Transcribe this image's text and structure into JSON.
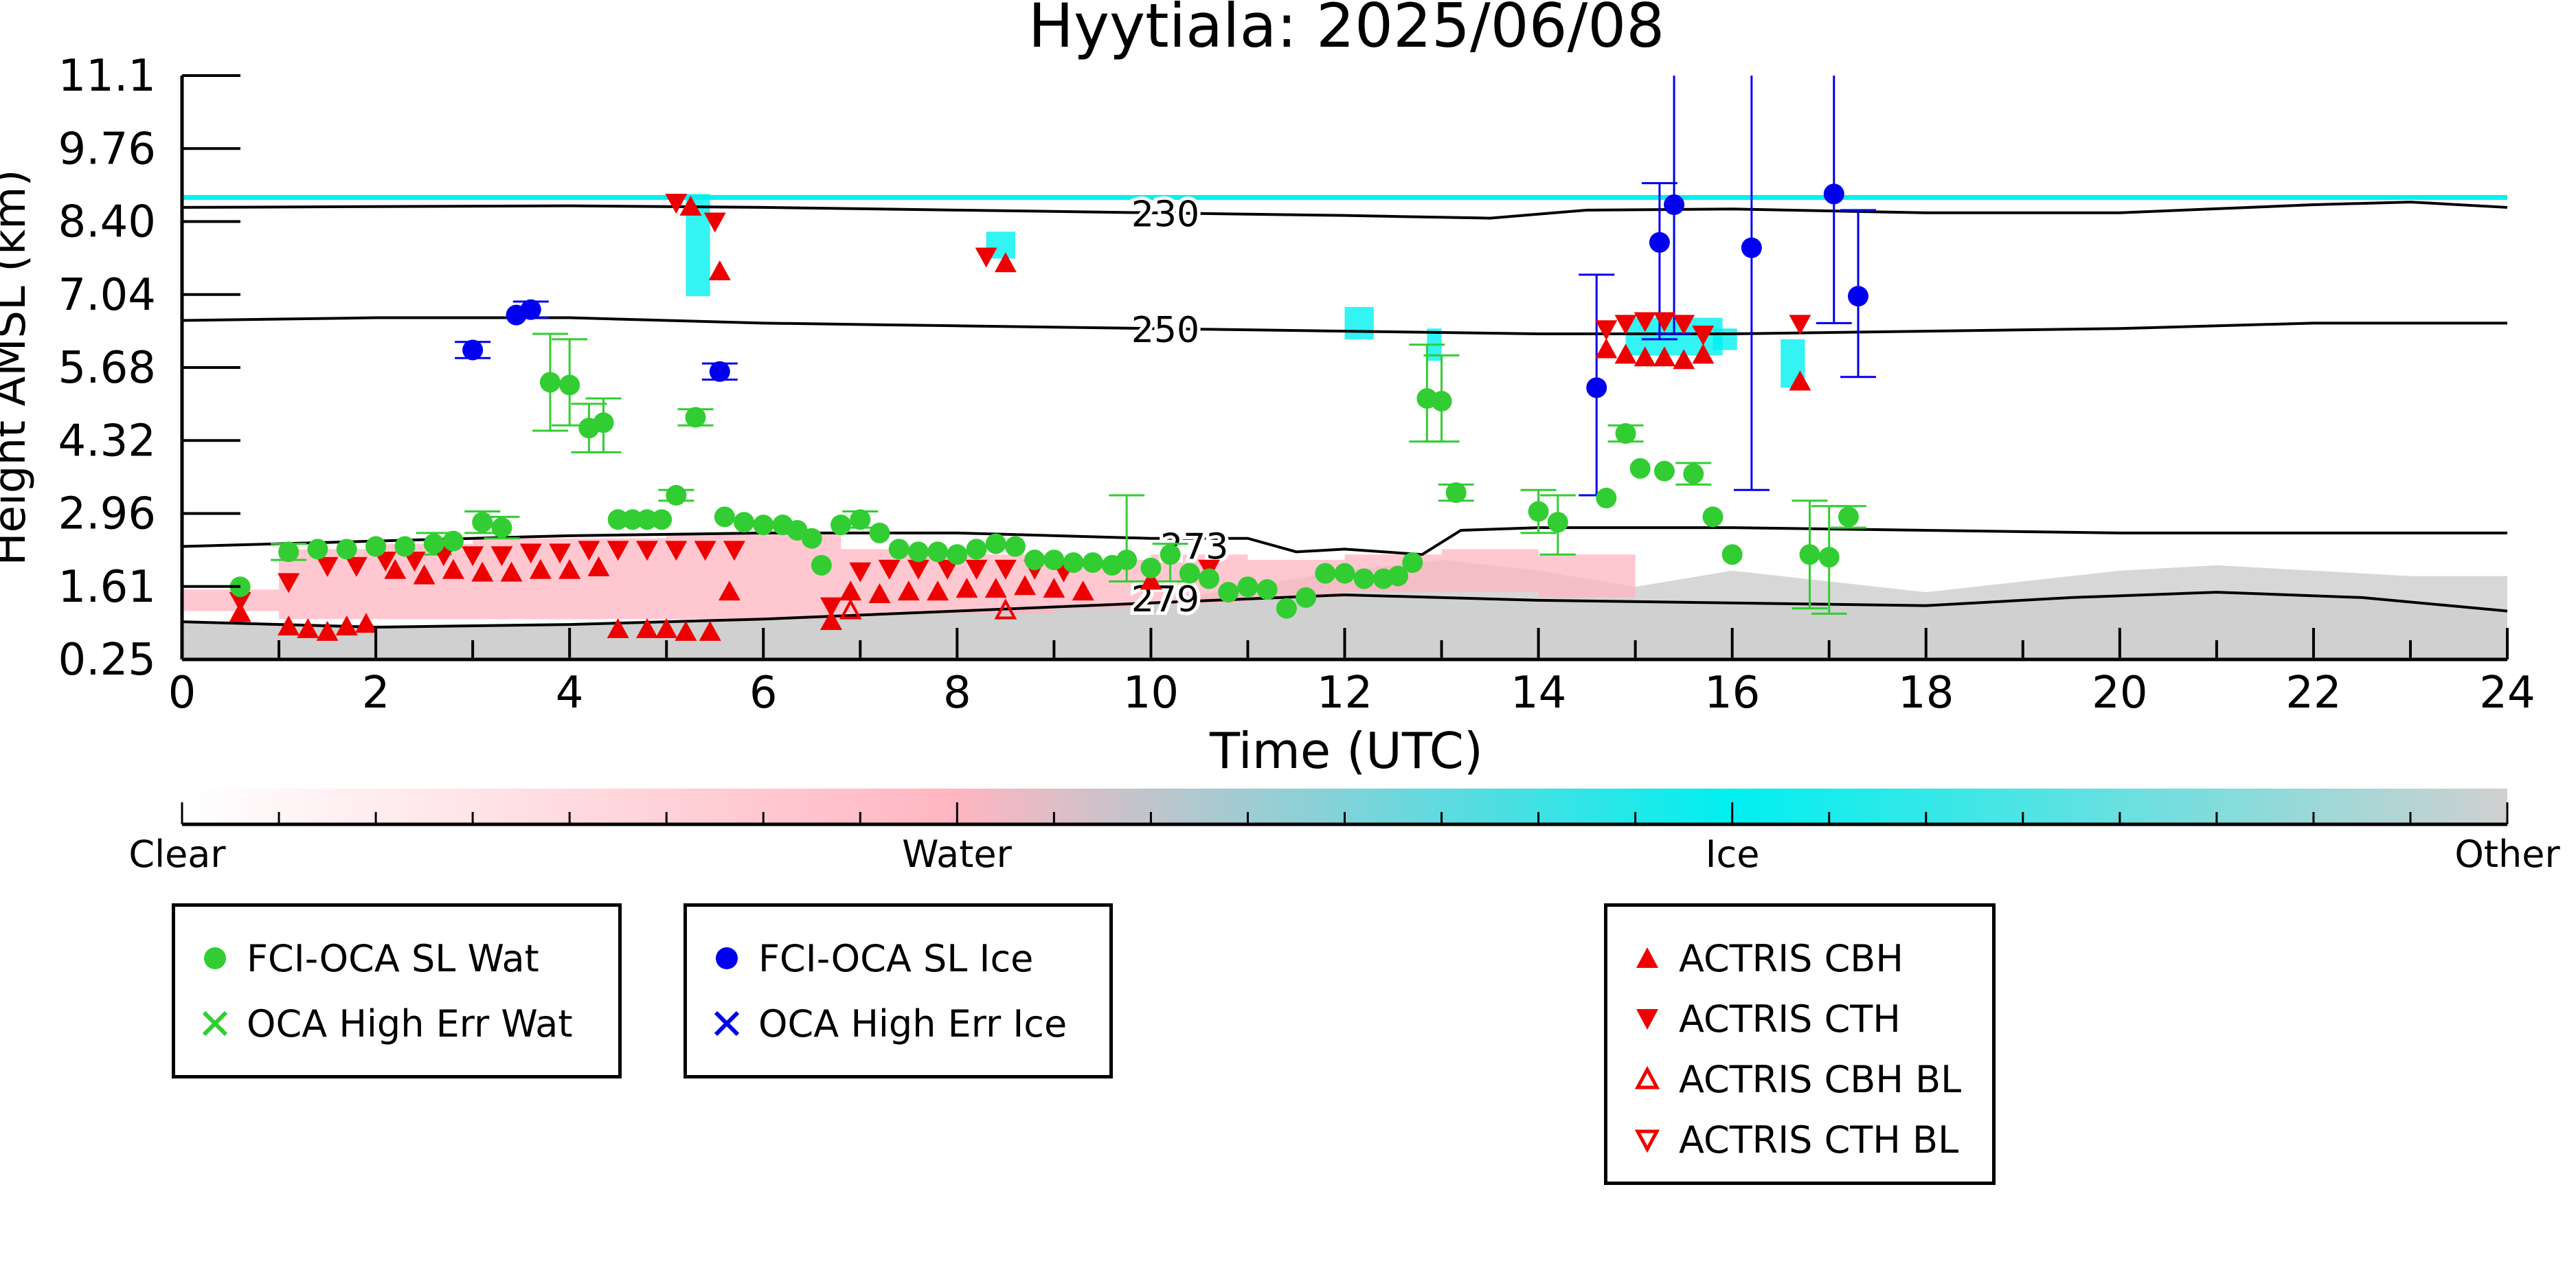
{
  "chart_data": {
    "type": "scatter",
    "title": "Hyytiala: 2025/06/08",
    "xlabel": "Time (UTC)",
    "ylabel": "Height AMSL (km)",
    "xlim": [
      0,
      24
    ],
    "ylim": [
      0.25,
      11.1
    ],
    "x_ticks": [
      "0",
      "2",
      "4",
      "6",
      "8",
      "10",
      "12",
      "14",
      "16",
      "18",
      "20",
      "22",
      "24"
    ],
    "y_ticks": [
      "0.25",
      "1.61",
      "2.96",
      "4.32",
      "5.68",
      "7.04",
      "8.40",
      "9.76",
      "11.1"
    ],
    "colorbar": {
      "labels": [
        "Clear",
        "Water",
        "Ice",
        "Other"
      ],
      "colors": [
        "#ffffff",
        "#ffb6c1",
        "#00f0f0",
        "#d0d0d0"
      ]
    },
    "contours": [
      {
        "label": "230",
        "x": [
          0,
          4,
          6,
          8,
          10,
          12,
          13.5,
          14.5,
          16,
          18,
          20,
          22,
          23,
          24
        ],
        "y": [
          8.65,
          8.68,
          8.65,
          8.6,
          8.55,
          8.5,
          8.45,
          8.6,
          8.62,
          8.55,
          8.55,
          8.7,
          8.75,
          8.65
        ]
      },
      {
        "label": "250",
        "x": [
          0,
          2,
          4,
          6,
          8,
          10,
          12,
          14,
          16,
          18,
          20,
          22,
          24
        ],
        "y": [
          6.55,
          6.6,
          6.6,
          6.5,
          6.45,
          6.4,
          6.35,
          6.3,
          6.3,
          6.35,
          6.4,
          6.5,
          6.5
        ]
      },
      {
        "label": "273",
        "x": [
          0,
          2,
          4,
          6,
          8,
          10,
          11,
          11.5,
          12,
          12.8,
          13.2,
          14,
          16,
          18,
          20,
          22,
          24
        ],
        "y": [
          2.35,
          2.45,
          2.55,
          2.6,
          2.6,
          2.5,
          2.5,
          2.25,
          2.3,
          2.2,
          2.65,
          2.7,
          2.7,
          2.65,
          2.6,
          2.6,
          2.6
        ]
      },
      {
        "label": "279",
        "x": [
          0,
          2,
          4,
          6,
          8,
          10,
          12,
          14,
          16,
          18,
          19.5,
          21,
          22.5,
          24
        ],
        "y": [
          0.95,
          0.85,
          0.9,
          1.0,
          1.15,
          1.3,
          1.45,
          1.35,
          1.3,
          1.25,
          1.4,
          1.5,
          1.4,
          1.15
        ]
      }
    ],
    "series": [
      {
        "name": "FCI-OCA SL Wat",
        "marker": "circle",
        "color": "#32cd32",
        "points": [
          [
            0.6,
            1.6
          ],
          [
            1.1,
            2.25
          ],
          [
            1.4,
            2.3
          ],
          [
            1.7,
            2.3
          ],
          [
            2.0,
            2.35
          ],
          [
            2.3,
            2.35
          ],
          [
            2.6,
            2.4
          ],
          [
            2.8,
            2.45
          ],
          [
            3.1,
            2.8
          ],
          [
            3.3,
            2.7
          ],
          [
            3.8,
            5.4
          ],
          [
            4.0,
            5.35
          ],
          [
            4.2,
            4.55
          ],
          [
            4.35,
            4.65
          ],
          [
            4.5,
            2.85
          ],
          [
            4.65,
            2.85
          ],
          [
            4.8,
            2.85
          ],
          [
            4.95,
            2.85
          ],
          [
            5.1,
            3.3
          ],
          [
            5.3,
            4.75
          ],
          [
            5.6,
            2.9
          ],
          [
            5.8,
            2.8
          ],
          [
            6.0,
            2.75
          ],
          [
            6.2,
            2.75
          ],
          [
            6.35,
            2.65
          ],
          [
            6.5,
            2.5
          ],
          [
            6.6,
            2.0
          ],
          [
            6.8,
            2.75
          ],
          [
            7.0,
            2.85
          ],
          [
            7.2,
            2.6
          ],
          [
            7.4,
            2.3
          ],
          [
            7.6,
            2.25
          ],
          [
            7.8,
            2.25
          ],
          [
            8.0,
            2.2
          ],
          [
            8.2,
            2.3
          ],
          [
            8.4,
            2.4
          ],
          [
            8.6,
            2.35
          ],
          [
            8.8,
            2.1
          ],
          [
            9.0,
            2.1
          ],
          [
            9.2,
            2.05
          ],
          [
            9.4,
            2.05
          ],
          [
            9.6,
            2.0
          ],
          [
            9.75,
            2.1
          ],
          [
            10.0,
            1.95
          ],
          [
            10.2,
            2.2
          ],
          [
            10.4,
            1.85
          ],
          [
            10.6,
            1.75
          ],
          [
            10.8,
            1.5
          ],
          [
            11.0,
            1.6
          ],
          [
            11.2,
            1.55
          ],
          [
            11.4,
            1.2
          ],
          [
            11.6,
            1.4
          ],
          [
            11.8,
            1.85
          ],
          [
            12.0,
            1.85
          ],
          [
            12.2,
            1.75
          ],
          [
            12.4,
            1.75
          ],
          [
            12.55,
            1.8
          ],
          [
            12.7,
            2.05
          ],
          [
            12.85,
            5.1
          ],
          [
            13.0,
            5.05
          ],
          [
            13.15,
            3.35
          ],
          [
            14.0,
            3.0
          ],
          [
            14.2,
            2.8
          ],
          [
            14.7,
            3.25
          ],
          [
            14.9,
            4.45
          ],
          [
            15.05,
            3.8
          ],
          [
            15.3,
            3.75
          ],
          [
            15.6,
            3.7
          ],
          [
            15.8,
            2.9
          ],
          [
            16.0,
            2.2
          ],
          [
            16.8,
            2.2
          ],
          [
            17.0,
            2.15
          ],
          [
            17.2,
            2.9
          ]
        ]
      },
      {
        "name": "FCI-OCA SL Ice",
        "marker": "circle",
        "color": "#0000ee",
        "points": [
          [
            3.0,
            6.0
          ],
          [
            3.45,
            6.65
          ],
          [
            3.6,
            6.75
          ],
          [
            5.55,
            5.6
          ],
          [
            14.6,
            5.3
          ],
          [
            15.25,
            8.0
          ],
          [
            15.4,
            8.7
          ],
          [
            16.2,
            7.9
          ],
          [
            17.05,
            8.9
          ],
          [
            17.3,
            7.0
          ]
        ]
      },
      {
        "name": "OCA High Err Wat",
        "marker": "x",
        "color": "#32cd32",
        "points": []
      },
      {
        "name": "OCA High Err Ice",
        "marker": "x",
        "color": "#0000ee",
        "points": []
      },
      {
        "name": "ACTRIS CBH",
        "marker": "triangle-up",
        "color": "#ee0000",
        "points": [
          [
            0.6,
            1.1
          ],
          [
            1.1,
            0.85
          ],
          [
            1.3,
            0.8
          ],
          [
            1.5,
            0.75
          ],
          [
            1.7,
            0.85
          ],
          [
            1.9,
            0.9
          ],
          [
            2.2,
            1.9
          ],
          [
            2.5,
            1.8
          ],
          [
            2.8,
            1.9
          ],
          [
            3.1,
            1.85
          ],
          [
            3.4,
            1.85
          ],
          [
            3.7,
            1.9
          ],
          [
            4.0,
            1.9
          ],
          [
            4.3,
            1.95
          ],
          [
            4.5,
            0.8
          ],
          [
            4.8,
            0.8
          ],
          [
            5.0,
            0.8
          ],
          [
            5.2,
            0.75
          ],
          [
            5.45,
            0.75
          ],
          [
            5.25,
            8.65
          ],
          [
            5.55,
            7.45
          ],
          [
            5.65,
            1.5
          ],
          [
            6.7,
            0.95
          ],
          [
            6.9,
            1.5
          ],
          [
            7.2,
            1.45
          ],
          [
            7.5,
            1.5
          ],
          [
            7.8,
            1.5
          ],
          [
            8.1,
            1.55
          ],
          [
            8.4,
            1.55
          ],
          [
            8.5,
            7.6
          ],
          [
            8.7,
            1.6
          ],
          [
            9.0,
            1.55
          ],
          [
            9.3,
            1.5
          ],
          [
            10.0,
            1.7
          ],
          [
            14.7,
            6.0
          ],
          [
            14.9,
            5.9
          ],
          [
            15.1,
            5.85
          ],
          [
            15.3,
            5.85
          ],
          [
            15.5,
            5.8
          ],
          [
            15.7,
            5.9
          ],
          [
            16.7,
            5.4
          ]
        ]
      },
      {
        "name": "ACTRIS CTH",
        "marker": "triangle-down",
        "color": "#ee0000",
        "points": [
          [
            0.6,
            1.35
          ],
          [
            1.1,
            1.7
          ],
          [
            1.5,
            2.0
          ],
          [
            1.8,
            2.0
          ],
          [
            2.1,
            2.1
          ],
          [
            2.4,
            2.1
          ],
          [
            2.7,
            2.2
          ],
          [
            3.0,
            2.2
          ],
          [
            3.3,
            2.2
          ],
          [
            3.6,
            2.25
          ],
          [
            3.9,
            2.25
          ],
          [
            4.2,
            2.3
          ],
          [
            4.5,
            2.3
          ],
          [
            4.8,
            2.3
          ],
          [
            5.1,
            2.3
          ],
          [
            5.4,
            2.3
          ],
          [
            5.7,
            2.3
          ],
          [
            5.1,
            8.75
          ],
          [
            5.5,
            8.4
          ],
          [
            6.7,
            1.25
          ],
          [
            7.0,
            1.9
          ],
          [
            7.3,
            1.95
          ],
          [
            7.6,
            1.95
          ],
          [
            7.9,
            1.95
          ],
          [
            8.2,
            1.95
          ],
          [
            8.3,
            7.75
          ],
          [
            8.5,
            1.95
          ],
          [
            8.8,
            1.95
          ],
          [
            9.1,
            1.9
          ],
          [
            10.6,
            1.95
          ],
          [
            14.7,
            6.4
          ],
          [
            14.9,
            6.5
          ],
          [
            15.1,
            6.55
          ],
          [
            15.3,
            6.55
          ],
          [
            15.5,
            6.5
          ],
          [
            15.7,
            6.3
          ],
          [
            16.7,
            6.5
          ]
        ]
      },
      {
        "name": "ACTRIS CBH BL",
        "marker": "triangle-up-open",
        "color": "#ee0000",
        "points": [
          [
            6.9,
            1.15
          ],
          [
            8.5,
            1.15
          ]
        ]
      },
      {
        "name": "ACTRIS CTH BL",
        "marker": "triangle-down-open",
        "color": "#ee0000",
        "points": []
      }
    ],
    "errorbars": [
      {
        "color": "#32cd32",
        "bars": [
          [
            3.8,
            4.5,
            6.3
          ],
          [
            4.0,
            4.6,
            6.2
          ],
          [
            4.2,
            4.1,
            5.0
          ],
          [
            4.35,
            4.1,
            5.1
          ],
          [
            1.1,
            2.1,
            2.4
          ],
          [
            2.6,
            2.2,
            2.6
          ],
          [
            3.1,
            2.6,
            3.0
          ],
          [
            3.3,
            2.5,
            2.9
          ],
          [
            5.1,
            3.2,
            3.4
          ],
          [
            5.3,
            4.6,
            4.9
          ],
          [
            7.0,
            2.7,
            3.0
          ],
          [
            9.75,
            1.7,
            3.3
          ],
          [
            10.2,
            1.7,
            2.4
          ],
          [
            12.85,
            4.3,
            6.1
          ],
          [
            13.0,
            4.3,
            5.9
          ],
          [
            13.15,
            3.2,
            3.5
          ],
          [
            14.0,
            2.6,
            3.4
          ],
          [
            14.2,
            2.2,
            3.3
          ],
          [
            14.9,
            4.3,
            4.6
          ],
          [
            15.6,
            3.5,
            3.9
          ],
          [
            16.8,
            1.2,
            3.2
          ],
          [
            17.0,
            1.1,
            3.1
          ],
          [
            17.2,
            2.7,
            3.1
          ]
        ]
      },
      {
        "color": "#0000ee",
        "bars": [
          [
            3.0,
            5.85,
            6.15
          ],
          [
            3.6,
            6.6,
            6.9
          ],
          [
            5.55,
            5.45,
            5.75
          ],
          [
            14.6,
            3.3,
            7.4
          ],
          [
            15.25,
            6.2,
            9.1
          ],
          [
            15.4,
            6.3,
            11.1
          ],
          [
            16.2,
            3.4,
            11.1
          ],
          [
            17.05,
            6.5,
            11.1
          ],
          [
            17.3,
            5.5,
            8.6
          ]
        ]
      }
    ],
    "legend_placement": "below"
  }
}
